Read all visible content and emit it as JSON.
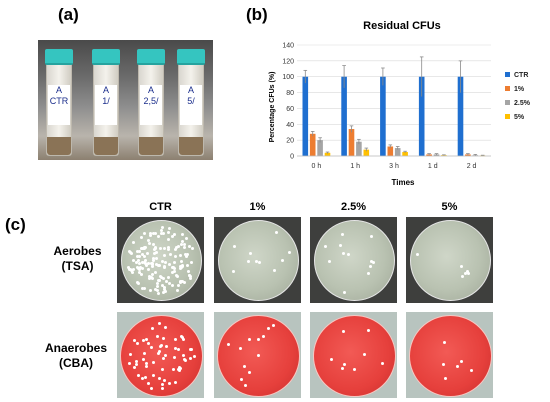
{
  "panels": {
    "a": "(a)",
    "b": "(b)",
    "c": "(c)"
  },
  "tubes": [
    {
      "line1": "A",
      "line2": "CTR"
    },
    {
      "line1": "A",
      "line2": "1/"
    },
    {
      "line1": "A",
      "line2": "2,5/"
    },
    {
      "line1": "A",
      "line2": "5/"
    }
  ],
  "chart_data": {
    "type": "bar",
    "title": "Residual CFUs",
    "xlabel": "Times",
    "ylabel": "Percentage CFUs (%)",
    "ylim": [
      0,
      140
    ],
    "yticks": [
      0,
      20,
      40,
      60,
      80,
      100,
      120,
      140
    ],
    "categories": [
      "0 h",
      "1 h",
      "3 h",
      "1 d",
      "2 d"
    ],
    "legend_position": "right",
    "grid": true,
    "series": [
      {
        "name": "CTR",
        "color": "#1f6fd0",
        "values": [
          100,
          100,
          100,
          100,
          100
        ],
        "errors": [
          8,
          14,
          11,
          25,
          20
        ]
      },
      {
        "name": "1%",
        "color": "#ed7d31",
        "values": [
          28,
          34,
          12,
          2,
          2
        ],
        "errors": [
          3,
          4,
          2,
          1,
          1
        ]
      },
      {
        "name": "2.5%",
        "color": "#a5a5a5",
        "values": [
          20,
          18,
          10,
          2,
          1
        ],
        "errors": [
          3,
          3,
          2,
          1,
          1
        ]
      },
      {
        "name": "5%",
        "color": "#ffc000",
        "values": [
          4,
          8,
          5,
          1,
          0.5
        ],
        "errors": [
          1,
          2,
          1,
          0.5,
          0.5
        ]
      }
    ]
  },
  "plates": {
    "columns": [
      "CTR",
      "1%",
      "2.5%",
      "5%"
    ],
    "rows": [
      {
        "line1": "Aerobes",
        "line2": "(TSA)"
      },
      {
        "line1": "Anaerobes",
        "line2": "(CBA)"
      }
    ]
  }
}
